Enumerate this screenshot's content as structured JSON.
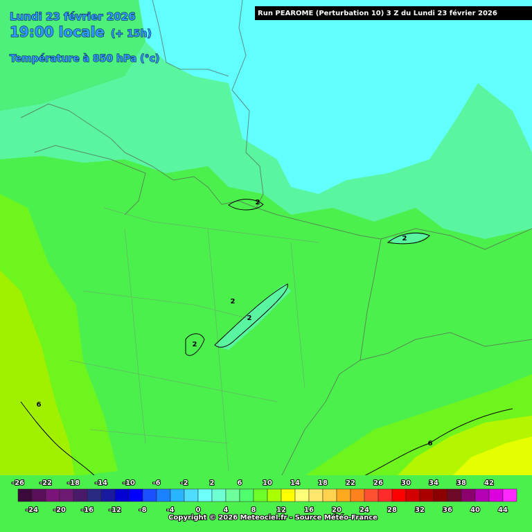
{
  "header": {
    "date": "Lundi 23 février 2026",
    "time": "19:00 locale",
    "offset": "(+ 15h)",
    "parameter": "Température à 850 hPa (°c)",
    "run": "Run PEAROME (Perturbation 10) 3 Z du Lundi 23 février 2026"
  },
  "map": {
    "contour_labels": [
      "2",
      "2",
      "2",
      "2",
      "2",
      "6",
      "6"
    ]
  },
  "legend": {
    "colors": [
      "#3a0a3a",
      "#5a0f5a",
      "#7a1478",
      "#6e1a72",
      "#4a1a6a",
      "#2a2a82",
      "#1a1aa0",
      "#0000d2",
      "#0000ff",
      "#1a50ff",
      "#1a82ff",
      "#2ab4ff",
      "#50dcff",
      "#6effff",
      "#6effd2",
      "#6eff9c",
      "#50ff6e",
      "#6eff28",
      "#aaff00",
      "#ffff00",
      "#ffff78",
      "#ffe66e",
      "#ffd250",
      "#ffaa1e",
      "#ff821e",
      "#ff5032",
      "#ff2a2a",
      "#ff0000",
      "#d20000",
      "#aa0000",
      "#8c0000",
      "#6e0a28",
      "#8c006e",
      "#b400b4",
      "#dc00dc",
      "#ff28ff"
    ],
    "top_labels": [
      -26,
      -22,
      -18,
      -14,
      -10,
      -6,
      -2,
      2,
      6,
      10,
      14,
      18,
      22,
      26,
      30,
      34,
      38,
      42
    ],
    "bottom_labels": [
      -24,
      -20,
      -16,
      -12,
      -8,
      -4,
      0,
      4,
      8,
      12,
      16,
      20,
      24,
      28,
      32,
      36,
      40,
      44
    ]
  },
  "footer": {
    "copyright": "Copyright © 2026 Meteociel.fr - Source Météo-France"
  }
}
